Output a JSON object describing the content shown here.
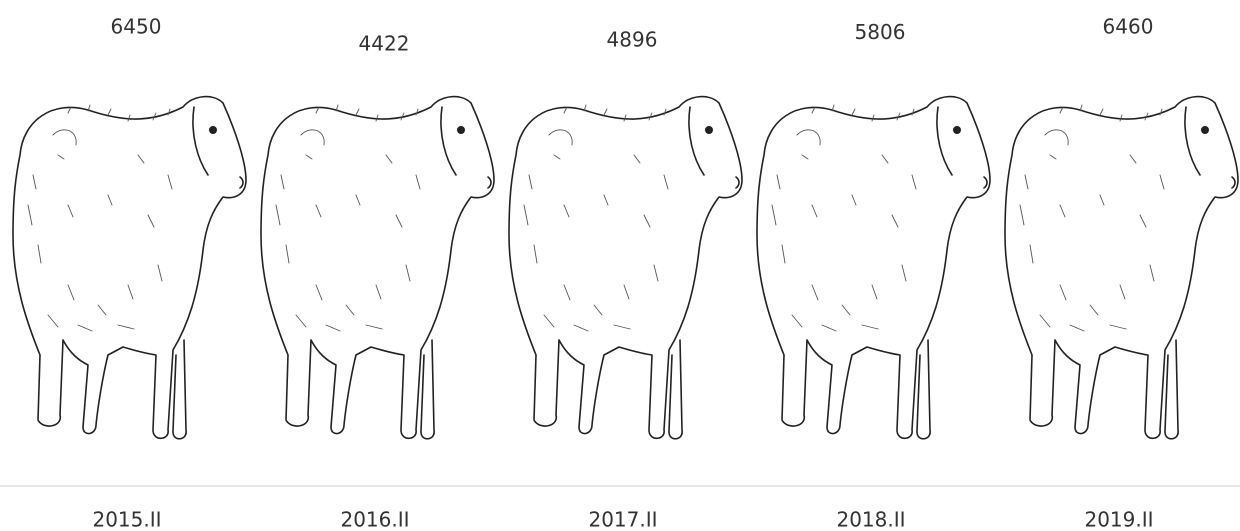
{
  "chart_data": {
    "type": "pictorial",
    "categories": [
      "2015.II",
      "2016.II",
      "2017.II",
      "2018.II",
      "2019.II"
    ],
    "values": [
      6450,
      4422,
      4896,
      5806,
      6460
    ]
  }
}
